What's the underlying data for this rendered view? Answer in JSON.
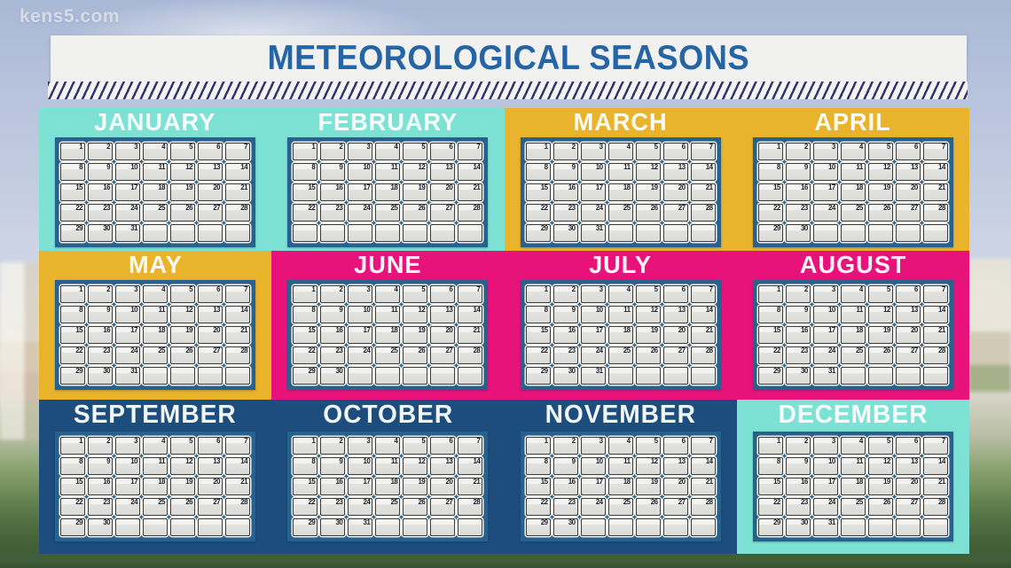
{
  "watermark": {
    "text": "kens5.com",
    "color": "#d7dce6"
  },
  "header": {
    "title": "METEOROLOGICAL SEASONS",
    "title_color": "#2565a5",
    "bar_bg": "#f1f1ef",
    "hatch_stripe_color": "#34346e",
    "hatch_bg": "#f4f4f2"
  },
  "seasons": {
    "winter": "#7de2d3",
    "spring": "#e9b32c",
    "summer": "#e8127b",
    "fall": "#1c4d7c"
  },
  "calendar_style": {
    "frame_color": "#27628f",
    "cell_border": "#3d3d3d",
    "day_number_color": "#1d222b",
    "grid_rows": 5,
    "grid_cols": 7
  },
  "months": [
    {
      "name": "JANUARY",
      "days": 31,
      "season": "winter"
    },
    {
      "name": "FEBRUARY",
      "days": 28,
      "season": "winter"
    },
    {
      "name": "MARCH",
      "days": 31,
      "season": "spring"
    },
    {
      "name": "APRIL",
      "days": 30,
      "season": "spring"
    },
    {
      "name": "MAY",
      "days": 31,
      "season": "spring"
    },
    {
      "name": "JUNE",
      "days": 30,
      "season": "summer"
    },
    {
      "name": "JULY",
      "days": 31,
      "season": "summer"
    },
    {
      "name": "AUGUST",
      "days": 31,
      "season": "summer"
    },
    {
      "name": "SEPTEMBER",
      "days": 30,
      "season": "fall"
    },
    {
      "name": "OCTOBER",
      "days": 31,
      "season": "fall"
    },
    {
      "name": "NOVEMBER",
      "days": 30,
      "season": "fall"
    },
    {
      "name": "DECEMBER",
      "days": 31,
      "season": "winter"
    }
  ],
  "layout": {
    "rows": [
      {
        "panels": [
          {
            "season": "winter",
            "month_indices": [
              0,
              1
            ]
          },
          {
            "season": "spring",
            "month_indices": [
              2,
              3
            ]
          }
        ]
      },
      {
        "panels": [
          {
            "season": "spring",
            "month_indices": [
              4
            ]
          },
          {
            "season": "summer",
            "month_indices": [
              5,
              6,
              7
            ]
          }
        ]
      },
      {
        "panels": [
          {
            "season": "fall",
            "month_indices": [
              8,
              9,
              10
            ]
          },
          {
            "season": "winter",
            "month_indices": [
              11
            ]
          }
        ]
      }
    ]
  }
}
